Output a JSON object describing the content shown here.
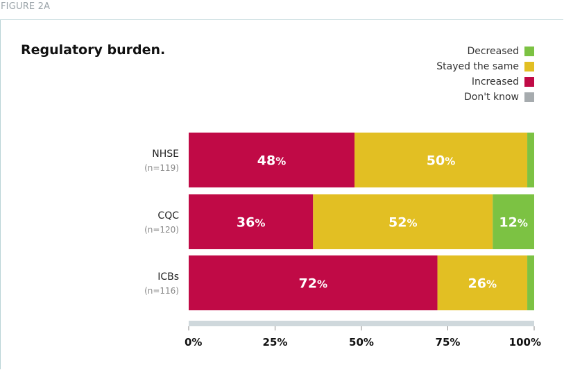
{
  "figure_label": "FIGURE 2A",
  "chart_data": {
    "type": "bar",
    "orientation": "horizontal",
    "stacked": true,
    "title": "Regulatory burden.",
    "categories": [
      "NHSE",
      "CQC",
      "ICBs"
    ],
    "category_notes": [
      "(n=119)",
      "(n=120)",
      "(n=116)"
    ],
    "series": [
      {
        "name": "Increased",
        "color": "#c00a46",
        "values": [
          48,
          36,
          72
        ],
        "labels": [
          "48",
          "36",
          "72"
        ]
      },
      {
        "name": "Stayed the same",
        "color": "#e2bf23",
        "values": [
          50,
          52,
          26
        ],
        "labels": [
          "50",
          "52",
          "26"
        ]
      },
      {
        "name": "Decreased",
        "color": "#7cc243",
        "values": [
          2,
          12,
          2
        ],
        "labels": [
          "",
          "12",
          ""
        ]
      },
      {
        "name": "Don't know",
        "color": "#a6abae",
        "values": [
          0,
          1,
          0
        ],
        "labels": [
          "",
          "",
          ""
        ]
      }
    ],
    "legend_order": [
      "Decreased",
      "Stayed the same",
      "Increased",
      "Don't know"
    ],
    "legend_position": "top-right",
    "percent_suffix": "%",
    "xlim": [
      0,
      100
    ],
    "xticks": [
      0,
      25,
      50,
      75,
      100
    ],
    "xtick_labels": [
      "0%",
      "25%",
      "50%",
      "75%",
      "100%"
    ],
    "axis_color": "#cfd8dc",
    "grid": false
  }
}
